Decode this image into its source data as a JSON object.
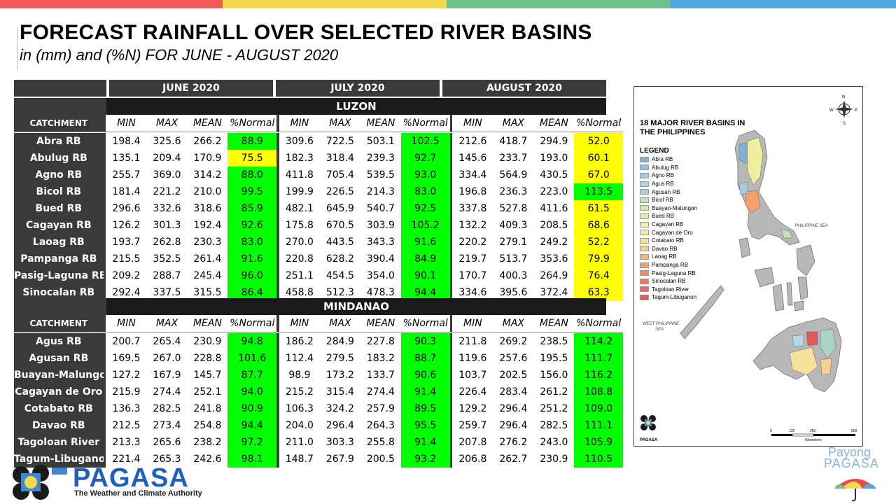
{
  "title": "FORECAST RAINFALL OVER SELECTED RIVER BASINS",
  "subtitle": "in (mm) and (%N) FOR JUNE - AUGUST 2020",
  "colors": {
    "green": "#00ff00",
    "yellow": "#ffff00",
    "header": "#3a3a3a",
    "top_bar": [
      "#f05a5a",
      "#f2d94e",
      "#6fc08a",
      "#4fa8e0"
    ]
  },
  "months": [
    "JUNE 2020",
    "JULY 2020",
    "AUGUST 2020"
  ],
  "column_labels": [
    "MIN",
    "MAX",
    "MEAN",
    "%Normal"
  ],
  "catchment_label": "CATCHMENT",
  "regions": [
    {
      "name": "LUZON",
      "rows": [
        {
          "name": "Abra RB",
          "june": [
            "198.4",
            "325.6",
            "266.2",
            "88.9"
          ],
          "july": [
            "309.6",
            "722.5",
            "503.1",
            "102.5"
          ],
          "aug": [
            "212.6",
            "418.7",
            "294.9",
            "52.0"
          ],
          "colors": [
            "green",
            "green",
            "yellow"
          ]
        },
        {
          "name": "Abulug RB",
          "june": [
            "135.1",
            "209.4",
            "170.9",
            "75.5"
          ],
          "july": [
            "182.3",
            "318.4",
            "239.3",
            "92.7"
          ],
          "aug": [
            "145.6",
            "233.7",
            "193.0",
            "60.1"
          ],
          "colors": [
            "yellow",
            "green",
            "yellow"
          ]
        },
        {
          "name": "Agno RB",
          "june": [
            "255.7",
            "369.0",
            "314.2",
            "88.0"
          ],
          "july": [
            "411.8",
            "705.4",
            "539.5",
            "93.0"
          ],
          "aug": [
            "334.4",
            "564.9",
            "430.5",
            "67.0"
          ],
          "colors": [
            "green",
            "green",
            "yellow"
          ]
        },
        {
          "name": "Bicol RB",
          "june": [
            "181.4",
            "221.2",
            "210.0",
            "99.5"
          ],
          "july": [
            "199.9",
            "226.5",
            "214.3",
            "83.0"
          ],
          "aug": [
            "196.8",
            "236.3",
            "223.0",
            "113.5"
          ],
          "colors": [
            "green",
            "green",
            "green"
          ]
        },
        {
          "name": "Bued RB",
          "june": [
            "296.6",
            "332.6",
            "318.6",
            "85.9"
          ],
          "july": [
            "482.1",
            "645.9",
            "540.7",
            "92.5"
          ],
          "aug": [
            "337.8",
            "527.8",
            "411.6",
            "61.5"
          ],
          "colors": [
            "green",
            "green",
            "yellow"
          ]
        },
        {
          "name": "Cagayan RB",
          "june": [
            "126.2",
            "301.3",
            "192.4",
            "92.6"
          ],
          "july": [
            "175.8",
            "670.5",
            "303.9",
            "105.2"
          ],
          "aug": [
            "132.2",
            "409.3",
            "208.5",
            "68.6"
          ],
          "colors": [
            "green",
            "green",
            "yellow"
          ]
        },
        {
          "name": "Laoag RB",
          "june": [
            "193.7",
            "262.8",
            "230.3",
            "83.0"
          ],
          "july": [
            "270.0",
            "443.5",
            "343.3",
            "91.6"
          ],
          "aug": [
            "220.2",
            "279.1",
            "249.2",
            "52.2"
          ],
          "colors": [
            "green",
            "green",
            "yellow"
          ]
        },
        {
          "name": "Pampanga RB",
          "june": [
            "215.5",
            "352.5",
            "261.4",
            "91.6"
          ],
          "july": [
            "220.8",
            "628.2",
            "390.4",
            "84.9"
          ],
          "aug": [
            "219.7",
            "513.7",
            "353.6",
            "79.9"
          ],
          "colors": [
            "green",
            "green",
            "yellow"
          ]
        },
        {
          "name": "Pasig-Laguna RB",
          "june": [
            "209.2",
            "288.7",
            "245.4",
            "96.0"
          ],
          "july": [
            "251.1",
            "454.5",
            "354.0",
            "90.1"
          ],
          "aug": [
            "170.7",
            "400.3",
            "264.9",
            "76.4"
          ],
          "colors": [
            "green",
            "green",
            "yellow"
          ]
        },
        {
          "name": "Sinocalan RB",
          "june": [
            "292.4",
            "337.5",
            "315.5",
            "86.4"
          ],
          "july": [
            "458.8",
            "512.3",
            "478.3",
            "94.4"
          ],
          "aug": [
            "334.6",
            "395.6",
            "372.4",
            "63.3"
          ],
          "colors": [
            "green",
            "green",
            "yellow"
          ]
        }
      ]
    },
    {
      "name": "MINDANAO",
      "rows": [
        {
          "name": "Agus RB",
          "june": [
            "200.7",
            "265.4",
            "230.9",
            "94.8"
          ],
          "july": [
            "186.2",
            "284.9",
            "227.8",
            "90.3"
          ],
          "aug": [
            "211.8",
            "269.2",
            "238.5",
            "114.2"
          ],
          "colors": [
            "green",
            "green",
            "green"
          ]
        },
        {
          "name": "Agusan RB",
          "june": [
            "169.5",
            "267.0",
            "228.8",
            "101.6"
          ],
          "july": [
            "112.4",
            "279.5",
            "183.2",
            "88.7"
          ],
          "aug": [
            "119.6",
            "257.6",
            "195.5",
            "111.7"
          ],
          "colors": [
            "green",
            "green",
            "green"
          ]
        },
        {
          "name": "Buayan-Malungon",
          "june": [
            "127.2",
            "167.9",
            "145.7",
            "87.7"
          ],
          "july": [
            "98.9",
            "173.2",
            "133.7",
            "90.6"
          ],
          "aug": [
            "103.7",
            "202.5",
            "156.0",
            "116.2"
          ],
          "colors": [
            "green",
            "green",
            "green"
          ]
        },
        {
          "name": "Cagayan de Oro",
          "june": [
            "215.9",
            "274.4",
            "252.1",
            "94.0"
          ],
          "july": [
            "215.2",
            "315.4",
            "274.4",
            "91.4"
          ],
          "aug": [
            "226.4",
            "283.4",
            "261.2",
            "108.8"
          ],
          "colors": [
            "green",
            "green",
            "green"
          ]
        },
        {
          "name": "Cotabato RB",
          "june": [
            "136.3",
            "282.5",
            "241.8",
            "90.9"
          ],
          "july": [
            "106.3",
            "324.2",
            "257.9",
            "89.5"
          ],
          "aug": [
            "129.2",
            "296.4",
            "251.2",
            "109.0"
          ],
          "colors": [
            "green",
            "green",
            "green"
          ]
        },
        {
          "name": "Davao RB",
          "june": [
            "212.5",
            "273.4",
            "254.8",
            "94.4"
          ],
          "july": [
            "204.0",
            "296.4",
            "264.3",
            "95.5"
          ],
          "aug": [
            "259.7",
            "296.4",
            "282.5",
            "111.1"
          ],
          "colors": [
            "green",
            "green",
            "green"
          ]
        },
        {
          "name": "Tagoloan River",
          "june": [
            "213.3",
            "265.6",
            "238.2",
            "97.2"
          ],
          "july": [
            "211.0",
            "303.3",
            "255.8",
            "91.4"
          ],
          "aug": [
            "207.8",
            "276.2",
            "243.0",
            "105.9"
          ],
          "colors": [
            "green",
            "green",
            "green"
          ]
        },
        {
          "name": "Tagum-Libuganon",
          "june": [
            "221.4",
            "265.3",
            "242.6",
            "98.1"
          ],
          "july": [
            "148.7",
            "267.9",
            "200.5",
            "93.2"
          ],
          "aug": [
            "206.8",
            "262.7",
            "230.9",
            "110.5"
          ],
          "colors": [
            "green",
            "green",
            "green"
          ]
        }
      ]
    }
  ],
  "map": {
    "title": "18 MAJOR RIVER BASINS IN THE PHILIPPINES",
    "legend_title": "LEGEND",
    "legend": [
      {
        "name": "Abra RB",
        "color": "#7fb2d9"
      },
      {
        "name": "Abulug RB",
        "color": "#8ec0df"
      },
      {
        "name": "Agno RB",
        "color": "#a3cbe3"
      },
      {
        "name": "Agus RB",
        "color": "#b5d6e4"
      },
      {
        "name": "Agusan RB",
        "color": "#a9d4c8"
      },
      {
        "name": "Bicol RB",
        "color": "#c5e0b4"
      },
      {
        "name": "Buayan-Malungon",
        "color": "#d6e8a8"
      },
      {
        "name": "Bued RB",
        "color": "#e6ee9c"
      },
      {
        "name": "Cagayan RB",
        "color": "#eef0a0"
      },
      {
        "name": "Cagayan de Oro",
        "color": "#f2ec9c"
      },
      {
        "name": "Cotabato RB",
        "color": "#f5e199"
      },
      {
        "name": "Davao RB",
        "color": "#f6d08e"
      },
      {
        "name": "Laoag RB",
        "color": "#f4b880"
      },
      {
        "name": "Pampanga RB",
        "color": "#f2a26f"
      },
      {
        "name": "Pasig-Laguna RB",
        "color": "#ef8c64"
      },
      {
        "name": "Sinocalan RB",
        "color": "#ec7a6a"
      },
      {
        "name": "Tagoloan River",
        "color": "#e86a6a"
      },
      {
        "name": "Tagum-Libuganon",
        "color": "#e05a5a"
      }
    ],
    "sea_east": "PHILIPPINE SEA",
    "sea_west_1": "WEST PHILIPPINE",
    "sea_west_2": "SEA",
    "agency": "PAGASA",
    "scale_labels": [
      "0",
      "125",
      "250",
      "500"
    ],
    "scale_unit": "Kilometers",
    "compass": [
      "N",
      "E",
      "S",
      "W"
    ]
  },
  "footer": {
    "logo_text": "PAGASA",
    "tagline": "The Weather and Climate Authority",
    "payong_line1": "Payong",
    "payong_line2": "PAGASA"
  }
}
